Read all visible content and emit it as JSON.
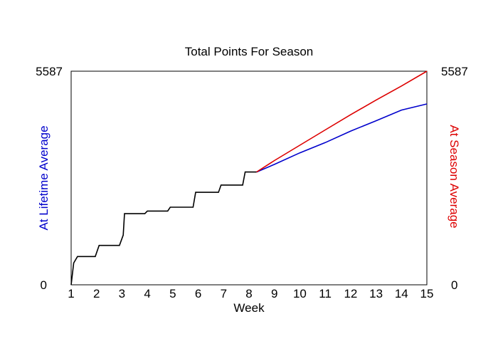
{
  "chart_data": {
    "type": "line",
    "title": "Total Points For Season",
    "xlabel": "Week",
    "ylabel_left": "At Lifetime Average",
    "ylabel_right": "At Season Average",
    "xlim": [
      1,
      15
    ],
    "ylim": [
      0,
      5587
    ],
    "x_ticks": [
      "1",
      "2",
      "3",
      "4",
      "5",
      "6",
      "7",
      "8",
      "9",
      "10",
      "11",
      "12",
      "13",
      "14",
      "15"
    ],
    "y_ticks_left": [
      "0",
      "5587"
    ],
    "y_ticks_right": [
      "0",
      "5587"
    ],
    "grid": false,
    "legend": "none",
    "colors": {
      "actual": "#000000",
      "lifetime": "#0000cc",
      "season": "#dd0000"
    },
    "series": [
      {
        "key": "actual",
        "x": [
          1,
          1.1,
          1.25,
          1.95,
          2.1,
          2.9,
          3.05,
          3.1,
          3.9,
          4.0,
          4.8,
          4.9,
          5.8,
          5.9,
          6.8,
          6.9,
          7.75,
          7.85,
          8.3
        ],
        "y": [
          0,
          570,
          740,
          740,
          1030,
          1030,
          1300,
          1860,
          1860,
          1930,
          1930,
          2030,
          2030,
          2420,
          2420,
          2610,
          2610,
          2950,
          2950
        ]
      },
      {
        "key": "lifetime",
        "x": [
          8.3,
          9,
          10,
          11,
          12,
          13,
          14,
          15
        ],
        "y": [
          2950,
          3150,
          3450,
          3720,
          4020,
          4290,
          4570,
          4730
        ]
      },
      {
        "key": "season",
        "x": [
          8.3,
          9,
          10,
          11,
          12,
          13,
          14,
          15
        ],
        "y": [
          2950,
          3250,
          3650,
          4050,
          4450,
          4830,
          5200,
          5587
        ]
      }
    ]
  }
}
